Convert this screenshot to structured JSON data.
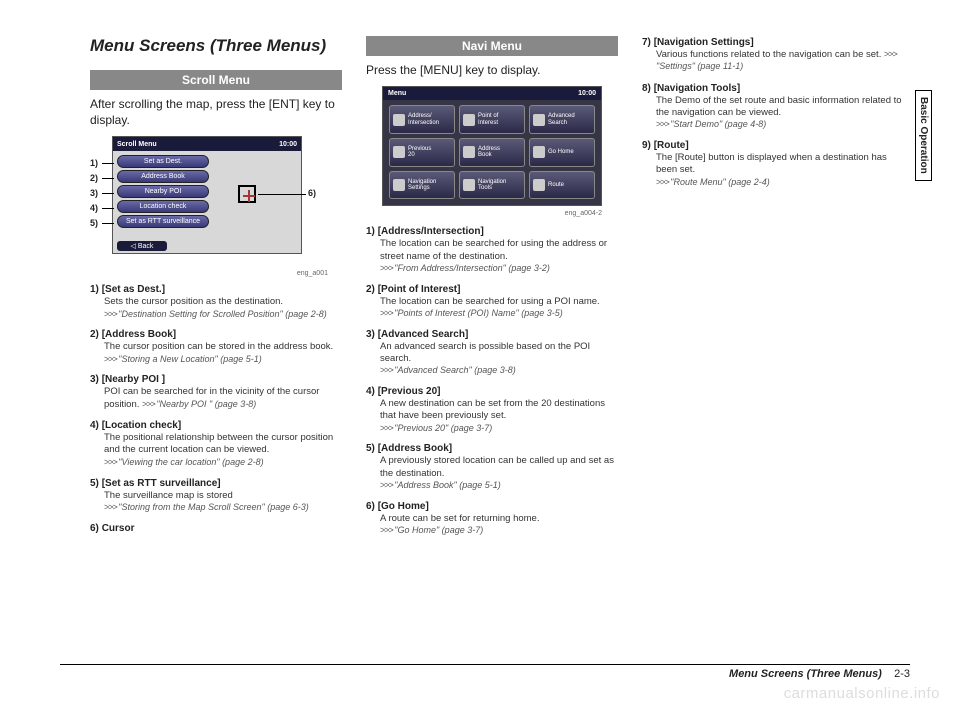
{
  "title": "Menu Screens (Three Menus)",
  "sidetab": "Basic Operation",
  "scroll": {
    "heading": "Scroll Menu",
    "intro": "After scrolling the map, press the [ENT] key to display.",
    "shot": {
      "topLeft": "Scroll Menu",
      "topRight": "10:00",
      "items": [
        "Set as Dest.",
        "Address Book",
        "Nearby POI",
        "Location check",
        "Set as RTT surveillance"
      ],
      "back": "◁ Back",
      "callouts": [
        "1)",
        "2)",
        "3)",
        "4)",
        "5)",
        "6)"
      ],
      "caption": "eng_a001"
    },
    "list": [
      {
        "num": "1)",
        "label": "[Set as Dest.]",
        "desc": "Sets the cursor position as the destination.",
        "ref": "\"Destination Setting for Scrolled Position\" (page 2-8)"
      },
      {
        "num": "2)",
        "label": "[Address Book]",
        "desc": "The cursor position can be stored in the address book.",
        "ref": "\"Storing a New Location\" (page 5-1)"
      },
      {
        "num": "3)",
        "label": "[Nearby POI ]",
        "desc": "POI can be searched for in the vicinity of the cursor position.",
        "refInline": "\"Nearby POI \" (page 3-8)"
      },
      {
        "num": "4)",
        "label": "[Location check]",
        "desc": "The positional relationship between the cursor position and the current location can be viewed.",
        "ref": "\"Viewing the car location\" (page 2-8)"
      },
      {
        "num": "5)",
        "label": "[Set as RTT surveillance]",
        "desc": "The surveillance map is stored",
        "ref": "\"Storing from the Map Scroll Screen\" (page 6-3)"
      },
      {
        "num": "6)",
        "label": "Cursor"
      }
    ]
  },
  "navi": {
    "heading": "Navi Menu",
    "intro": "Press the [MENU] key to display.",
    "shot": {
      "topLeft": "Menu",
      "topRight": "10:00",
      "buttons": [
        "Address/\nIntersection",
        "Point of\nInterest",
        "Advanced\nSearch",
        "Previous\n20",
        "Address\nBook",
        "Go Home",
        "Navigation\nSettings",
        "Navigation\nTools",
        "Route"
      ],
      "caption": "eng_a004-2"
    },
    "list": [
      {
        "num": "1)",
        "label": "[Address/Intersection]",
        "desc": "The location can be searched for using the address or street name of the destination.",
        "ref": "\"From Address/Intersection\" (page 3-2)"
      },
      {
        "num": "2)",
        "label": "[Point of Interest]",
        "desc": "The location can be searched for using a POI name.",
        "ref": "\"Points of Interest (POI) Name\" (page 3-5)"
      },
      {
        "num": "3)",
        "label": "[Advanced Search]",
        "desc": "An advanced search is possible based on the POI search.",
        "ref": "\"Advanced Search\" (page 3-8)"
      },
      {
        "num": "4)",
        "label": "[Previous 20]",
        "desc": "A new destination can be set from the 20 destinations that have been previously set.",
        "ref": "\"Previous 20\" (page 3-7)"
      },
      {
        "num": "5)",
        "label": "[Address Book]",
        "desc": "A previously stored location can be called up and set as the destination.",
        "ref": "\"Address Book\" (page 5-1)"
      },
      {
        "num": "6)",
        "label": "[Go Home]",
        "desc": "A route can be set for returning home.",
        "ref": "\"Go Home\" (page 3-7)"
      }
    ]
  },
  "col3": [
    {
      "num": "7)",
      "label": "[Navigation Settings]",
      "desc": "Various functions related to the navigation can be set.",
      "refInline": "\"Settings\" (page 11-1)"
    },
    {
      "num": "8)",
      "label": "[Navigation Tools]",
      "desc": "The Demo of the set route and basic information related to the navigation can be viewed.",
      "ref": "\"Start Demo\" (page 4-8)"
    },
    {
      "num": "9)",
      "label": "[Route]",
      "desc": "The [Route] button is displayed when a destination has been set.",
      "ref": "\"Route Menu\" (page 2-4)"
    }
  ],
  "footer": {
    "title": "Menu Screens (Three Menus)",
    "page": "2-3"
  },
  "watermark": "carmanualsonline.info"
}
